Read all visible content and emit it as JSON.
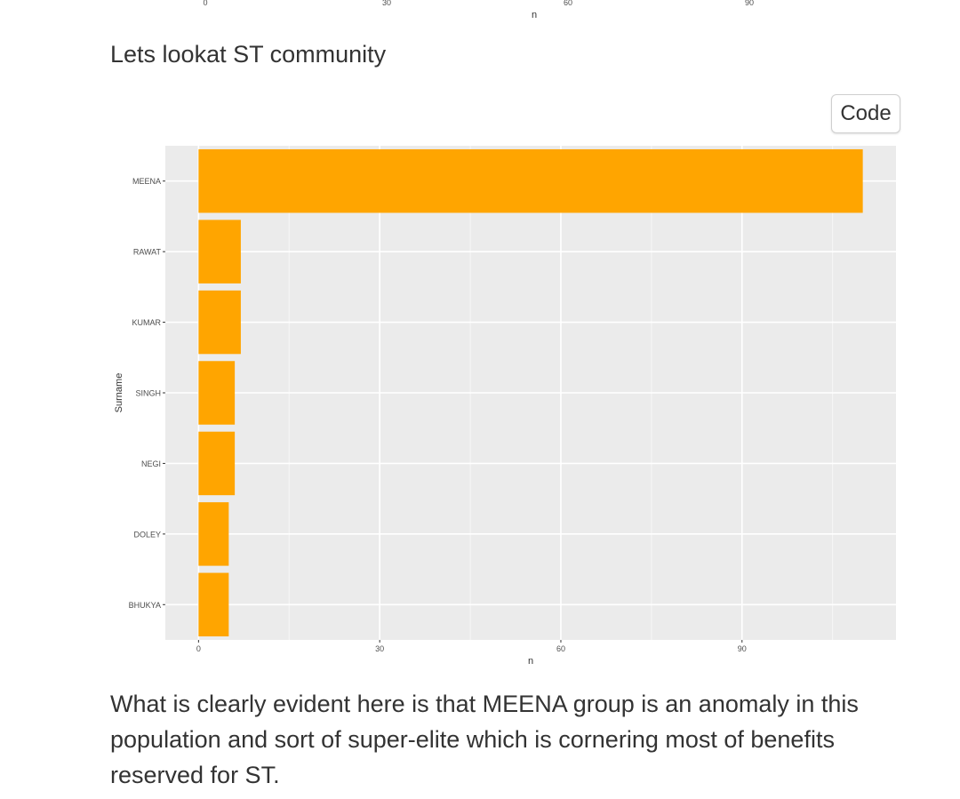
{
  "prev_chart_axis": {
    "ticks": [
      0,
      30,
      60,
      90
    ],
    "xlabel": "n"
  },
  "heading": "Lets lookat ST community",
  "code_button_label": "Code",
  "chart_data": {
    "type": "bar",
    "orientation": "horizontal",
    "categories": [
      "MEENA",
      "RAWAT",
      "KUMAR",
      "SINGH",
      "NEGI",
      "DOLEY",
      "BHUKYA"
    ],
    "values": [
      110,
      7,
      7,
      6,
      6,
      5,
      5
    ],
    "xlabel": "n",
    "ylabel": "Surname",
    "xlim": [
      -5.5,
      115.5
    ],
    "xticks": [
      0,
      30,
      60,
      90
    ],
    "grid": true,
    "bar_color": "#FFA500",
    "panel_color": "#EBEBEB"
  },
  "body_text": "What is clearly evident here is that MEENA group is an anomaly in this population and sort of super-elite which is cornering most of benefits reserved for ST."
}
